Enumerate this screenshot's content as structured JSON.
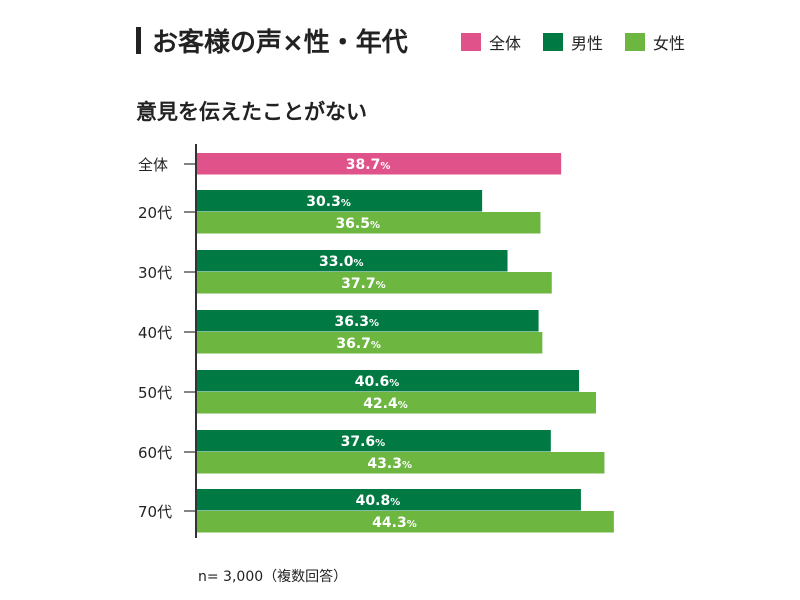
{
  "header": {
    "title": "お客様の声×性・年代",
    "subtitle": "意見を伝えたことがない"
  },
  "legend": [
    {
      "label": "全体",
      "color": "#e0528a"
    },
    {
      "label": "男性",
      "color": "#007a42"
    },
    {
      "label": "女性",
      "color": "#6db640"
    }
  ],
  "footer": {
    "note": "n= 3,000（複数回答）"
  },
  "chart_data": {
    "type": "bar",
    "orientation": "horizontal",
    "title": "お客様の声×性・年代",
    "subtitle": "意見を伝えたことがない",
    "xlabel": "",
    "ylabel": "",
    "value_suffix": "%",
    "xlim": [
      0,
      45
    ],
    "grid": false,
    "legend_position": "top-right",
    "categories": [
      "全体",
      "20代",
      "30代",
      "40代",
      "50代",
      "60代",
      "70代"
    ],
    "series": [
      {
        "name": "全体",
        "color": "#e0528a",
        "values": [
          38.7,
          null,
          null,
          null,
          null,
          null,
          null
        ]
      },
      {
        "name": "男性",
        "color": "#007a42",
        "values": [
          null,
          30.3,
          33.0,
          36.3,
          40.6,
          37.6,
          40.8
        ]
      },
      {
        "name": "女性",
        "color": "#6db640",
        "values": [
          null,
          36.5,
          37.7,
          36.7,
          42.4,
          43.3,
          44.3
        ]
      }
    ],
    "note": "n= 3,000（複数回答）"
  }
}
